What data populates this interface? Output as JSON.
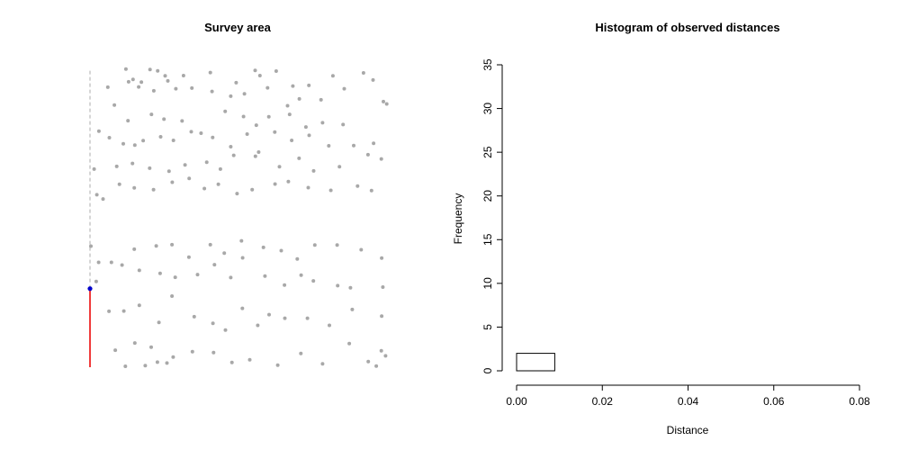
{
  "chart_data": [
    {
      "type": "scatter",
      "title": "Survey area",
      "xlim": [
        0,
        1
      ],
      "ylim": [
        0,
        1
      ],
      "axes_shown": false,
      "point_color": "#a8a8a8",
      "transect": {
        "x": 0,
        "y_start": 0,
        "y_end": 1,
        "walked_to": 0.263,
        "walked_color": "#f03b3b",
        "remaining_color": "#c8c8c8",
        "observer_color": "#0000cc"
      },
      "points": [
        [
          0.121,
          0.998
        ],
        [
          0.145,
          0.963
        ],
        [
          0.173,
          0.954
        ],
        [
          0.202,
          0.996
        ],
        [
          0.228,
          0.992
        ],
        [
          0.253,
          0.975
        ],
        [
          0.315,
          0.976
        ],
        [
          0.405,
          0.986
        ],
        [
          0.492,
          0.952
        ],
        [
          0.556,
          0.993
        ],
        [
          0.572,
          0.976
        ],
        [
          0.627,
          0.991
        ],
        [
          0.683,
          0.941
        ],
        [
          0.737,
          0.943
        ],
        [
          0.818,
          0.975
        ],
        [
          0.921,
          0.985
        ],
        [
          0.06,
          0.937
        ],
        [
          0.13,
          0.955
        ],
        [
          0.164,
          0.938
        ],
        [
          0.215,
          0.925
        ],
        [
          0.262,
          0.958
        ],
        [
          0.289,
          0.932
        ],
        [
          0.343,
          0.934
        ],
        [
          0.411,
          0.923
        ],
        [
          0.474,
          0.907
        ],
        [
          0.52,
          0.915
        ],
        [
          0.598,
          0.935
        ],
        [
          0.665,
          0.875
        ],
        [
          0.705,
          0.898
        ],
        [
          0.778,
          0.895
        ],
        [
          0.856,
          0.932
        ],
        [
          0.953,
          0.961
        ],
        [
          0.082,
          0.877
        ],
        [
          0.128,
          0.825
        ],
        [
          0.207,
          0.846
        ],
        [
          0.249,
          0.83
        ],
        [
          0.31,
          0.824
        ],
        [
          0.374,
          0.783
        ],
        [
          0.455,
          0.856
        ],
        [
          0.517,
          0.839
        ],
        [
          0.56,
          0.81
        ],
        [
          0.602,
          0.838
        ],
        [
          0.672,
          0.846
        ],
        [
          0.727,
          0.804
        ],
        [
          0.783,
          0.818
        ],
        [
          0.852,
          0.812
        ],
        [
          0.988,
          0.889
        ],
        [
          0.999,
          0.881
        ],
        [
          0.03,
          0.79
        ],
        [
          0.065,
          0.768
        ],
        [
          0.112,
          0.748
        ],
        [
          0.151,
          0.743
        ],
        [
          0.179,
          0.758
        ],
        [
          0.238,
          0.771
        ],
        [
          0.281,
          0.759
        ],
        [
          0.341,
          0.788
        ],
        [
          0.413,
          0.769
        ],
        [
          0.474,
          0.738
        ],
        [
          0.529,
          0.78
        ],
        [
          0.568,
          0.72
        ],
        [
          0.622,
          0.787
        ],
        [
          0.679,
          0.759
        ],
        [
          0.738,
          0.776
        ],
        [
          0.804,
          0.741
        ],
        [
          0.888,
          0.742
        ],
        [
          0.955,
          0.749
        ],
        [
          0.014,
          0.663
        ],
        [
          0.09,
          0.672
        ],
        [
          0.143,
          0.682
        ],
        [
          0.201,
          0.666
        ],
        [
          0.266,
          0.656
        ],
        [
          0.32,
          0.677
        ],
        [
          0.393,
          0.686
        ],
        [
          0.439,
          0.663
        ],
        [
          0.484,
          0.709
        ],
        [
          0.557,
          0.706
        ],
        [
          0.638,
          0.671
        ],
        [
          0.704,
          0.699
        ],
        [
          0.753,
          0.657
        ],
        [
          0.84,
          0.671
        ],
        [
          0.936,
          0.711
        ],
        [
          0.981,
          0.697
        ],
        [
          0.023,
          0.577
        ],
        [
          0.044,
          0.563
        ],
        [
          0.099,
          0.612
        ],
        [
          0.149,
          0.6
        ],
        [
          0.214,
          0.594
        ],
        [
          0.277,
          0.619
        ],
        [
          0.334,
          0.632
        ],
        [
          0.385,
          0.598
        ],
        [
          0.432,
          0.612
        ],
        [
          0.495,
          0.581
        ],
        [
          0.546,
          0.594
        ],
        [
          0.623,
          0.613
        ],
        [
          0.668,
          0.621
        ],
        [
          0.735,
          0.601
        ],
        [
          0.811,
          0.592
        ],
        [
          0.901,
          0.606
        ],
        [
          0.948,
          0.591
        ],
        [
          0.003,
          0.405
        ],
        [
          0.029,
          0.351
        ],
        [
          0.072,
          0.351
        ],
        [
          0.149,
          0.395
        ],
        [
          0.223,
          0.406
        ],
        [
          0.276,
          0.41
        ],
        [
          0.333,
          0.368
        ],
        [
          0.405,
          0.41
        ],
        [
          0.452,
          0.382
        ],
        [
          0.51,
          0.423
        ],
        [
          0.584,
          0.401
        ],
        [
          0.644,
          0.39
        ],
        [
          0.698,
          0.362
        ],
        [
          0.757,
          0.409
        ],
        [
          0.832,
          0.409
        ],
        [
          0.913,
          0.393
        ],
        [
          0.982,
          0.365
        ],
        [
          0.021,
          0.287
        ],
        [
          0.108,
          0.342
        ],
        [
          0.166,
          0.324
        ],
        [
          0.236,
          0.314
        ],
        [
          0.287,
          0.301
        ],
        [
          0.362,
          0.31
        ],
        [
          0.419,
          0.343
        ],
        [
          0.474,
          0.3
        ],
        [
          0.514,
          0.366
        ],
        [
          0.589,
          0.305
        ],
        [
          0.655,
          0.275
        ],
        [
          0.711,
          0.308
        ],
        [
          0.752,
          0.289
        ],
        [
          0.834,
          0.273
        ],
        [
          0.877,
          0.266
        ],
        [
          0.986,
          0.268
        ],
        [
          0.064,
          0.187
        ],
        [
          0.114,
          0.188
        ],
        [
          0.166,
          0.207
        ],
        [
          0.232,
          0.15
        ],
        [
          0.276,
          0.238
        ],
        [
          0.351,
          0.169
        ],
        [
          0.414,
          0.147
        ],
        [
          0.456,
          0.124
        ],
        [
          0.513,
          0.197
        ],
        [
          0.565,
          0.14
        ],
        [
          0.603,
          0.176
        ],
        [
          0.656,
          0.164
        ],
        [
          0.732,
          0.164
        ],
        [
          0.806,
          0.14
        ],
        [
          0.883,
          0.193
        ],
        [
          0.982,
          0.171
        ],
        [
          0.085,
          0.057
        ],
        [
          0.151,
          0.081
        ],
        [
          0.206,
          0.067
        ],
        [
          0.28,
          0.034
        ],
        [
          0.345,
          0.052
        ],
        [
          0.416,
          0.049
        ],
        [
          0.538,
          0.025
        ],
        [
          0.71,
          0.046
        ],
        [
          0.873,
          0.079
        ],
        [
          0.981,
          0.055
        ],
        [
          0.995,
          0.038
        ],
        [
          0.119,
          0.003
        ],
        [
          0.186,
          0.005
        ],
        [
          0.227,
          0.017
        ],
        [
          0.259,
          0.014
        ],
        [
          0.478,
          0.016
        ],
        [
          0.632,
          0.007
        ],
        [
          0.783,
          0.011
        ],
        [
          0.937,
          0.019
        ],
        [
          0.964,
          0.004
        ]
      ]
    },
    {
      "type": "bar",
      "title": "Histogram of observed distances",
      "xlabel": "Distance",
      "ylabel": "Frequency",
      "xlim": [
        0,
        0.08
      ],
      "ylim": [
        0,
        35
      ],
      "xticks": [
        "0.00",
        "0.02",
        "0.04",
        "0.06",
        "0.08"
      ],
      "yticks": [
        "0",
        "5",
        "10",
        "15",
        "20",
        "25",
        "30",
        "35"
      ],
      "bin_edges": [
        0,
        0.0089,
        0.0178,
        0.0267,
        0.0356,
        0.0444,
        0.0533,
        0.0622,
        0.0711,
        0.08
      ],
      "values": [
        2,
        0,
        0,
        0,
        0,
        0,
        0,
        0,
        0
      ]
    }
  ]
}
